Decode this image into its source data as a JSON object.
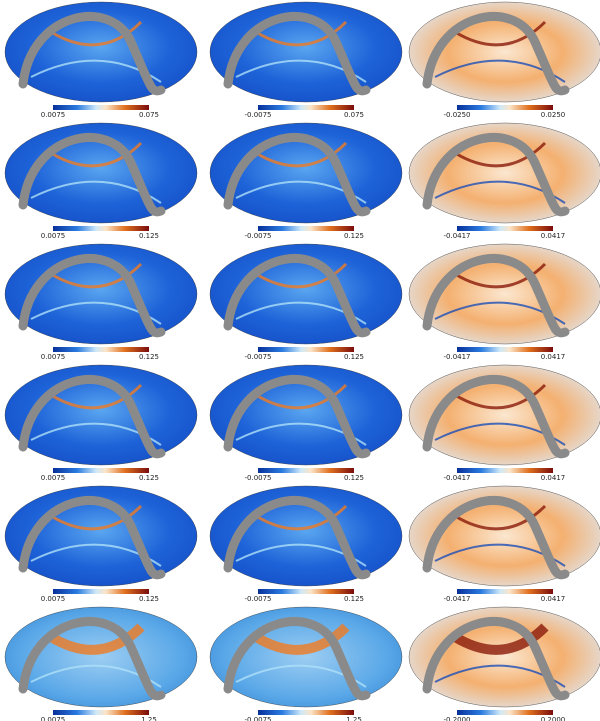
{
  "rows": [
    [
      {
        "min": "0.0075",
        "max": "0.075"
      },
      {
        "min": "-0.0075",
        "max": "0.075"
      },
      {
        "min": "-0.0250",
        "max": "0.0250"
      }
    ],
    [
      {
        "min": "0.0075",
        "max": "0.125"
      },
      {
        "min": "-0.0075",
        "max": "0.125"
      },
      {
        "min": "-0.0417",
        "max": "0.0417"
      }
    ],
    [
      {
        "min": "0.0075",
        "max": "0.125"
      },
      {
        "min": "-0.0075",
        "max": "0.125"
      },
      {
        "min": "-0.0417",
        "max": "0.0417"
      }
    ],
    [
      {
        "min": "0.0075",
        "max": "0.125"
      },
      {
        "min": "-0.0075",
        "max": "0.125"
      },
      {
        "min": "-0.0417",
        "max": "0.0417"
      }
    ],
    [
      {
        "min": "0.0075",
        "max": "0.125"
      },
      {
        "min": "-0.0075",
        "max": "0.125"
      },
      {
        "min": "-0.0417",
        "max": "0.0417"
      }
    ],
    [
      {
        "min": "0.0075",
        "max": "1.25"
      },
      {
        "min": "-0.0075",
        "max": "1.25"
      },
      {
        "min": "-0.2000",
        "max": "0.2000"
      }
    ]
  ]
}
